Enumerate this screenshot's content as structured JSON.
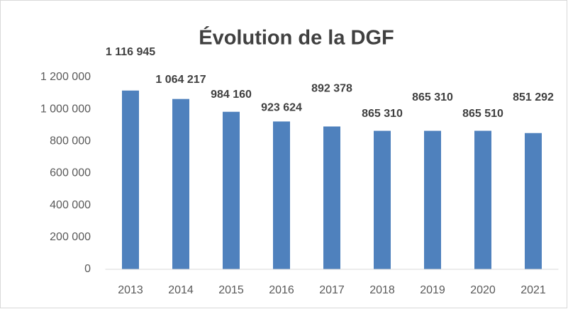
{
  "chart_data": {
    "type": "bar",
    "title": "Évolution de la DGF",
    "categories": [
      "2013",
      "2014",
      "2015",
      "2016",
      "2017",
      "2018",
      "2019",
      "2020",
      "2021"
    ],
    "values": [
      1116945,
      1064217,
      984160,
      923624,
      892378,
      865310,
      865310,
      865510,
      851292
    ],
    "value_labels": [
      "1 116 945",
      "1 064 217",
      "984 160",
      "923 624",
      "892 378",
      "865 310",
      "865 310",
      "865 510",
      "851 292"
    ],
    "color": "#4f81bd",
    "ylim": [
      0,
      1200000
    ],
    "yticks": [
      0,
      {
        "value": 200000,
        "label": "200 000"
      },
      {
        "value": 400000,
        "label": "400 000"
      },
      {
        "value": 600000,
        "label": "600 000"
      },
      {
        "value": 800000,
        "label": "800 000"
      },
      {
        "value": 1000000,
        "label": "1 000 000"
      },
      {
        "value": 1200000,
        "label": "1 200 000"
      }
    ],
    "grid": false
  }
}
